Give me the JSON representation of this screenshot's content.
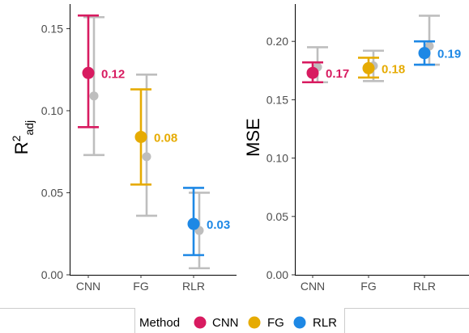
{
  "chart_data": [
    {
      "type": "errorbar",
      "ylabel_main": "R",
      "ylabel_sup": "2",
      "ylabel_sub": "adj",
      "categories": [
        "CNN",
        "FG",
        "RLR"
      ],
      "ylim": [
        0,
        0.165
      ],
      "yticks": [
        0.0,
        0.05,
        0.1,
        0.15
      ],
      "ytick_labels": [
        "0.00",
        "0.05",
        "0.10",
        "0.15"
      ],
      "grid": false,
      "series": [
        {
          "values": [
            0.123,
            0.084,
            0.031
          ],
          "lower": [
            0.09,
            0.055,
            0.012
          ],
          "upper": [
            0.158,
            0.113,
            0.053
          ],
          "labels": [
            "0.12",
            "0.08",
            "0.03"
          ]
        },
        {
          "values": [
            0.109,
            0.072,
            0.027
          ],
          "lower": [
            0.073,
            0.036,
            0.004
          ],
          "upper": [
            0.157,
            0.122,
            0.05
          ]
        }
      ]
    },
    {
      "type": "errorbar",
      "ylabel": "MSE",
      "categories": [
        "CNN",
        "FG",
        "RLR"
      ],
      "ylim": [
        0,
        0.232
      ],
      "yticks": [
        0.0,
        0.05,
        0.1,
        0.15,
        0.2
      ],
      "ytick_labels": [
        "0.00",
        "0.05",
        "0.10",
        "0.15",
        "0.20"
      ],
      "grid": false,
      "series": [
        {
          "values": [
            0.173,
            0.177,
            0.19
          ],
          "lower": [
            0.165,
            0.169,
            0.18
          ],
          "upper": [
            0.182,
            0.186,
            0.2
          ],
          "labels": [
            "0.17",
            "0.18",
            "0.19"
          ]
        },
        {
          "values": [
            0.178,
            0.179,
            0.196
          ],
          "lower": [
            0.165,
            0.166,
            0.18
          ],
          "upper": [
            0.195,
            0.192,
            0.222
          ]
        }
      ]
    }
  ],
  "legend": {
    "title": "Method",
    "placement": "bottom",
    "items": [
      {
        "label": "CNN",
        "color": "#D81B60"
      },
      {
        "label": "FG",
        "color": "#E6AB02"
      },
      {
        "label": "RLR",
        "color": "#1E88E5"
      }
    ]
  },
  "colors": {
    "gray_series": "#BEBEBE",
    "tick_text": "#4D4D4D"
  }
}
